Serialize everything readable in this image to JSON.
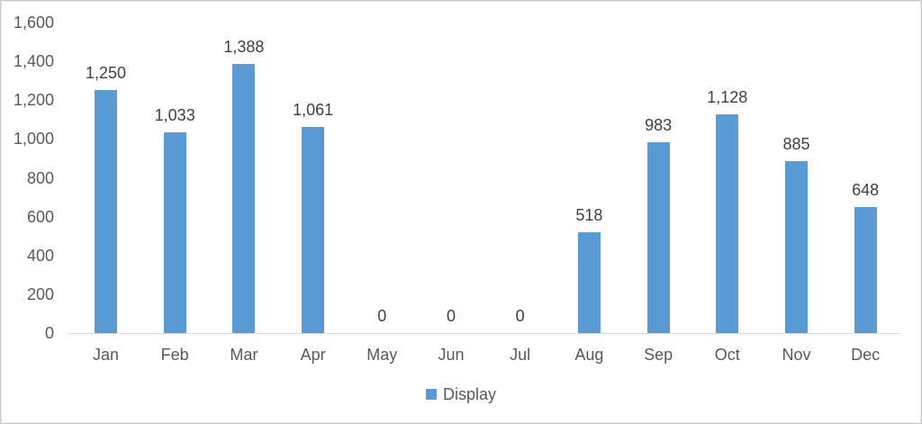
{
  "chart_data": {
    "type": "bar",
    "title": "",
    "categories": [
      "Jan",
      "Feb",
      "Mar",
      "Apr",
      "May",
      "Jun",
      "Jul",
      "Aug",
      "Sep",
      "Oct",
      "Nov",
      "Dec"
    ],
    "series": [
      {
        "name": "Display",
        "values": [
          1250,
          1033,
          1388,
          1061,
          0,
          0,
          0,
          518,
          983,
          1128,
          885,
          648
        ]
      }
    ],
    "data_labels": [
      "1,250",
      "1,033",
      "1,388",
      "1,061",
      "0",
      "0",
      "0",
      "518",
      "983",
      "1,128",
      "885",
      "648"
    ],
    "xlabel": "",
    "ylabel": "",
    "ylim": [
      0,
      1600
    ],
    "ytick_step": 200,
    "ytick_labels": [
      "0",
      "200",
      "400",
      "600",
      "800",
      "1,000",
      "1,200",
      "1,400",
      "1,600"
    ],
    "grid": false,
    "legend_position": "bottom",
    "legend_entries": [
      {
        "label": "Display",
        "color": "#5B9BD5"
      }
    ],
    "colors": {
      "bar": "#5B9BD5",
      "axis_line": "#D9D9D9",
      "tick_label": "#595959",
      "data_label": "#404040",
      "background": "#FFFFFF"
    }
  }
}
